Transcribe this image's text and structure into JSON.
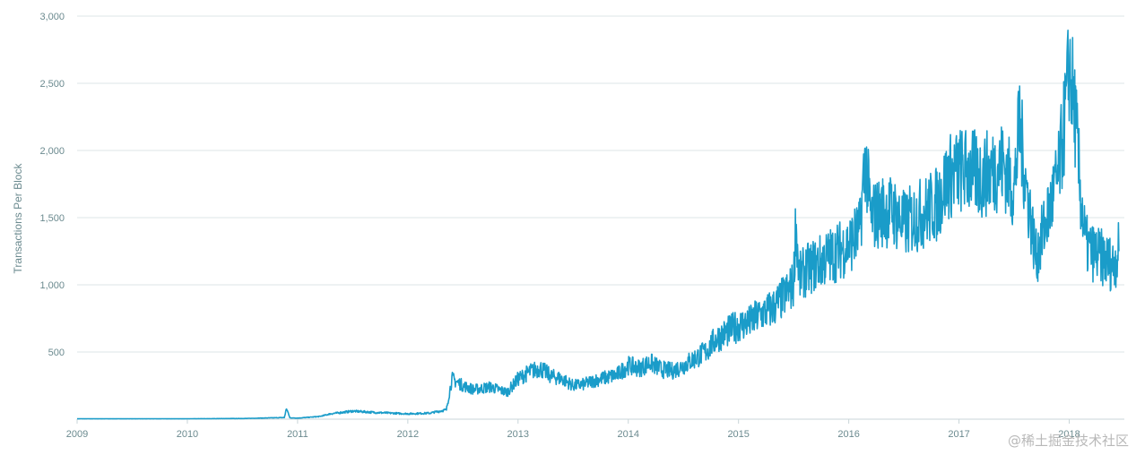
{
  "chart_data": {
    "type": "line",
    "title": "",
    "xlabel": "",
    "ylabel": "Transactions Per Block",
    "xlim": [
      2009.0,
      2018.5
    ],
    "ylim": [
      0,
      3000
    ],
    "x_ticks": [
      "2009",
      "2010",
      "2011",
      "2012",
      "2013",
      "2014",
      "2015",
      "2016",
      "2017",
      "2018"
    ],
    "y_ticks": [
      500,
      1000,
      1500,
      2000,
      2500,
      3000
    ],
    "y_tick_labels": [
      "500",
      "1,000",
      "1,500",
      "2,000",
      "2,500",
      "3,000"
    ],
    "grid": "horizontal",
    "legend": "none",
    "line_color": "#1a9cc9",
    "series": [
      {
        "x": [
          2009.0,
          2009.5,
          2010.0,
          2010.5,
          2010.88,
          2010.9,
          2010.93,
          2011.0,
          2011.2,
          2011.3,
          2011.5,
          2011.7,
          2012.0,
          2012.2,
          2012.35,
          2012.4,
          2012.5,
          2012.6,
          2012.75,
          2012.9,
          2013.0,
          2013.1,
          2013.2,
          2013.3,
          2013.4,
          2013.5,
          2013.6,
          2013.7,
          2013.8,
          2013.9,
          2014.0,
          2014.1,
          2014.2,
          2014.3,
          2014.4,
          2014.5,
          2014.6,
          2014.7,
          2014.8,
          2014.9,
          2015.0,
          2015.1,
          2015.2,
          2015.3,
          2015.4,
          2015.5,
          2015.52,
          2015.55,
          2015.6,
          2015.7,
          2015.8,
          2015.9,
          2016.0,
          2016.1,
          2016.15,
          2016.2,
          2016.3,
          2016.4,
          2016.5,
          2016.6,
          2016.7,
          2016.8,
          2016.9,
          2017.0,
          2017.1,
          2017.2,
          2017.3,
          2017.4,
          2017.5,
          2017.55,
          2017.6,
          2017.7,
          2017.8,
          2017.9,
          2017.95,
          2017.98,
          2018.0,
          2018.05,
          2018.1,
          2018.15,
          2018.2,
          2018.3,
          2018.4,
          2018.45
        ],
        "y": [
          3,
          3,
          3,
          5,
          12,
          80,
          10,
          8,
          20,
          40,
          60,
          50,
          40,
          45,
          70,
          300,
          250,
          220,
          240,
          200,
          300,
          350,
          380,
          320,
          300,
          250,
          260,
          290,
          310,
          330,
          400,
          380,
          420,
          370,
          360,
          400,
          450,
          500,
          600,
          650,
          700,
          720,
          780,
          820,
          900,
          1000,
          1480,
          1050,
          1100,
          1150,
          1200,
          1250,
          1300,
          1400,
          1950,
          1500,
          1550,
          1550,
          1450,
          1500,
          1550,
          1600,
          1800,
          1850,
          1850,
          1800,
          1850,
          1900,
          1700,
          2200,
          1800,
          1200,
          1500,
          1800,
          2150,
          2400,
          2650,
          2300,
          1700,
          1300,
          1250,
          1200,
          1150,
          1250
        ]
      }
    ]
  },
  "watermark": "@稀土掘金技术社区"
}
